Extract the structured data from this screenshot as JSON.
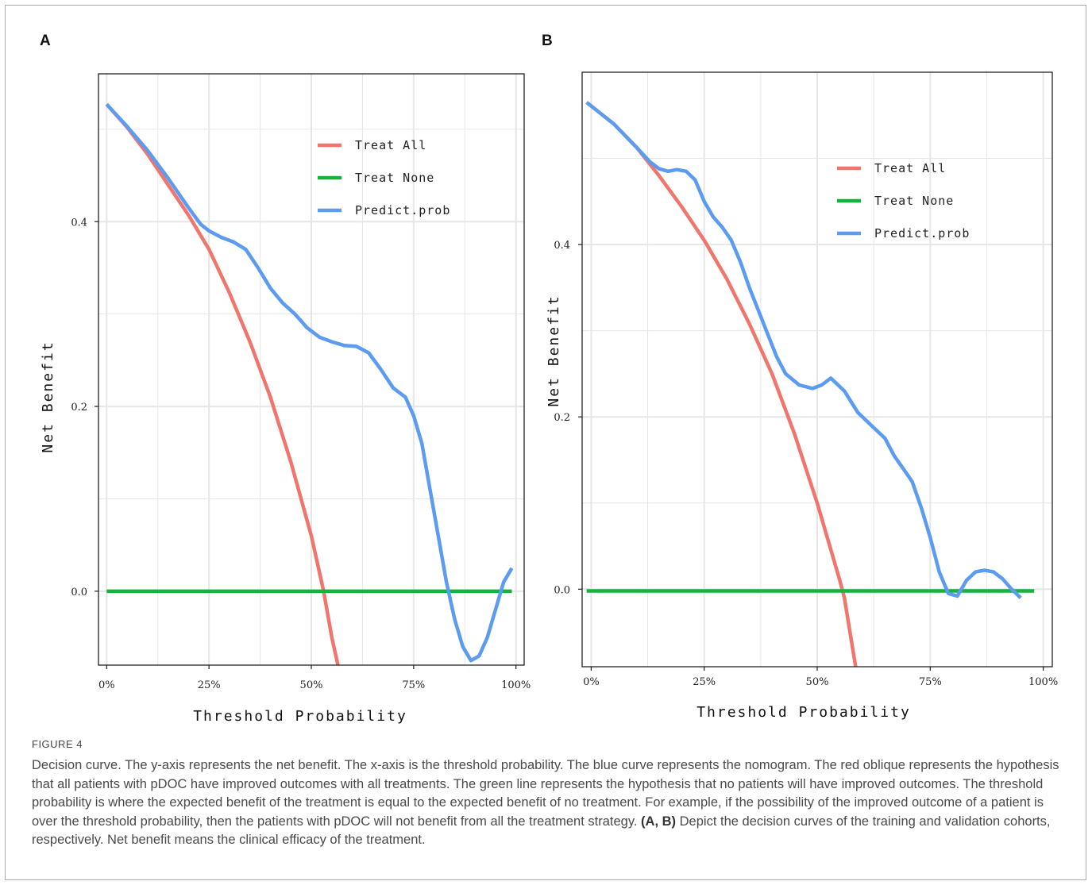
{
  "figure": {
    "label": "FIGURE 4",
    "caption_part1": "Decision curve. The y-axis represents the net benefit. The x-axis is the threshold probability. The blue curve represents the nomogram. The red oblique represents the hypothesis that all patients with pDOC have improved outcomes with all treatments. The green line represents the hypothesis that no patients will have improved outcomes. The threshold probability is where the expected benefit of the treatment is equal to the expected benefit of no treatment. For example, if the possibility of the improved outcome of a patient is over the threshold probability, then the patients with pDOC will not benefit from all the treatment strategy.",
    "caption_bold": "(A, B)",
    "caption_part2": "Depict the decision curves of the training and validation cohorts, respectively. Net benefit means the clinical efficacy of the treatment."
  },
  "colors": {
    "treat_all": "#f0766d",
    "treat_none": "#14b33a",
    "predict": "#5b9cf0",
    "grid": "#e6e6e6",
    "axis": "#222222"
  },
  "chart_data": [
    {
      "panel": "A",
      "type": "line",
      "xlabel": "Threshold Probability",
      "ylabel": "Net Benefit",
      "xlim": [
        -0.02,
        1.02
      ],
      "ylim": [
        -0.08,
        0.56
      ],
      "x_ticks": [
        0,
        0.25,
        0.5,
        0.75,
        1.0
      ],
      "x_tick_labels": [
        "0%",
        "25%",
        "50%",
        "75%",
        "100%"
      ],
      "y_ticks": [
        0,
        0.2,
        0.4
      ],
      "y_tick_labels": [
        "0.0",
        "0.2",
        "0.4"
      ],
      "legend_position": "top-right",
      "series": [
        {
          "name": "Treat All",
          "color": "#f0766d",
          "points": [
            [
              0,
              0.527
            ],
            [
              0.05,
              0.502
            ],
            [
              0.1,
              0.473
            ],
            [
              0.15,
              0.44
            ],
            [
              0.2,
              0.407
            ],
            [
              0.25,
              0.37
            ],
            [
              0.3,
              0.323
            ],
            [
              0.35,
              0.27
            ],
            [
              0.4,
              0.21
            ],
            [
              0.45,
              0.14
            ],
            [
              0.5,
              0.06
            ],
            [
              0.53,
              0.0
            ],
            [
              0.55,
              -0.05
            ],
            [
              0.565,
              -0.08
            ]
          ]
        },
        {
          "name": "Treat None",
          "color": "#14b33a",
          "points": [
            [
              0,
              0
            ],
            [
              0.99,
              0
            ]
          ]
        },
        {
          "name": "Predict.prob",
          "color": "#5b9cf0",
          "points": [
            [
              0,
              0.527
            ],
            [
              0.05,
              0.503
            ],
            [
              0.1,
              0.477
            ],
            [
              0.15,
              0.447
            ],
            [
              0.2,
              0.415
            ],
            [
              0.23,
              0.397
            ],
            [
              0.25,
              0.39
            ],
            [
              0.28,
              0.383
            ],
            [
              0.31,
              0.378
            ],
            [
              0.34,
              0.37
            ],
            [
              0.37,
              0.35
            ],
            [
              0.4,
              0.328
            ],
            [
              0.43,
              0.312
            ],
            [
              0.46,
              0.3
            ],
            [
              0.49,
              0.285
            ],
            [
              0.52,
              0.275
            ],
            [
              0.55,
              0.27
            ],
            [
              0.58,
              0.266
            ],
            [
              0.61,
              0.265
            ],
            [
              0.64,
              0.258
            ],
            [
              0.67,
              0.24
            ],
            [
              0.7,
              0.22
            ],
            [
              0.73,
              0.21
            ],
            [
              0.75,
              0.19
            ],
            [
              0.77,
              0.16
            ],
            [
              0.79,
              0.11
            ],
            [
              0.81,
              0.06
            ],
            [
              0.83,
              0.01
            ],
            [
              0.85,
              -0.03
            ],
            [
              0.87,
              -0.06
            ],
            [
              0.89,
              -0.075
            ],
            [
              0.91,
              -0.07
            ],
            [
              0.93,
              -0.05
            ],
            [
              0.95,
              -0.02
            ],
            [
              0.97,
              0.01
            ],
            [
              0.99,
              0.025
            ]
          ]
        }
      ]
    },
    {
      "panel": "B",
      "type": "line",
      "xlabel": "Threshold Probability",
      "ylabel": "Net Benefit",
      "xlim": [
        -0.02,
        1.02
      ],
      "ylim": [
        -0.09,
        0.6
      ],
      "x_ticks": [
        0,
        0.25,
        0.5,
        0.75,
        1.0
      ],
      "x_tick_labels": [
        "0%",
        "25%",
        "50%",
        "75%",
        "100%"
      ],
      "y_ticks": [
        0,
        0.2,
        0.4
      ],
      "y_tick_labels": [
        "0.0",
        "0.2",
        "0.4"
      ],
      "legend_position": "top-right",
      "series": [
        {
          "name": "Treat All",
          "color": "#f0766d",
          "points": [
            [
              -0.01,
              0.565
            ],
            [
              0.05,
              0.54
            ],
            [
              0.1,
              0.513
            ],
            [
              0.15,
              0.48
            ],
            [
              0.2,
              0.444
            ],
            [
              0.25,
              0.405
            ],
            [
              0.3,
              0.36
            ],
            [
              0.35,
              0.308
            ],
            [
              0.4,
              0.25
            ],
            [
              0.45,
              0.18
            ],
            [
              0.5,
              0.1
            ],
            [
              0.55,
              0.01
            ],
            [
              0.56,
              -0.01
            ],
            [
              0.585,
              -0.09
            ]
          ]
        },
        {
          "name": "Treat None",
          "color": "#14b33a",
          "points": [
            [
              -0.01,
              -0.002
            ],
            [
              0.98,
              -0.002
            ]
          ]
        },
        {
          "name": "Predict.prob",
          "color": "#5b9cf0",
          "points": [
            [
              -0.01,
              0.565
            ],
            [
              0.05,
              0.54
            ],
            [
              0.1,
              0.513
            ],
            [
              0.13,
              0.496
            ],
            [
              0.15,
              0.488
            ],
            [
              0.17,
              0.485
            ],
            [
              0.19,
              0.487
            ],
            [
              0.21,
              0.485
            ],
            [
              0.23,
              0.475
            ],
            [
              0.25,
              0.45
            ],
            [
              0.27,
              0.432
            ],
            [
              0.29,
              0.42
            ],
            [
              0.31,
              0.405
            ],
            [
              0.33,
              0.38
            ],
            [
              0.35,
              0.35
            ],
            [
              0.38,
              0.31
            ],
            [
              0.41,
              0.27
            ],
            [
              0.43,
              0.25
            ],
            [
              0.46,
              0.237
            ],
            [
              0.49,
              0.233
            ],
            [
              0.51,
              0.237
            ],
            [
              0.53,
              0.245
            ],
            [
              0.56,
              0.23
            ],
            [
              0.59,
              0.205
            ],
            [
              0.62,
              0.19
            ],
            [
              0.65,
              0.175
            ],
            [
              0.67,
              0.155
            ],
            [
              0.69,
              0.14
            ],
            [
              0.71,
              0.125
            ],
            [
              0.73,
              0.095
            ],
            [
              0.75,
              0.06
            ],
            [
              0.77,
              0.02
            ],
            [
              0.79,
              -0.005
            ],
            [
              0.81,
              -0.008
            ],
            [
              0.83,
              0.01
            ],
            [
              0.85,
              0.02
            ],
            [
              0.87,
              0.022
            ],
            [
              0.89,
              0.02
            ],
            [
              0.91,
              0.012
            ],
            [
              0.93,
              0.0
            ],
            [
              0.95,
              -0.01
            ]
          ]
        }
      ]
    }
  ]
}
